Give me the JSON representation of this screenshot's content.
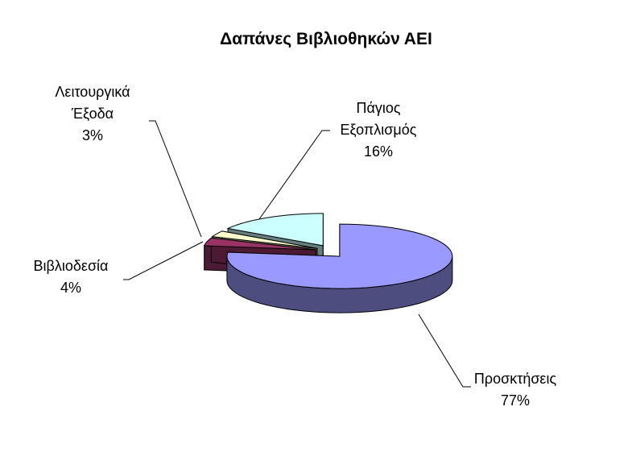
{
  "chart_data": {
    "type": "pie3d",
    "title": "Δαπάνες Βιβλιοθηκών ΑΕΙ",
    "categories": [
      "Προσκτήσεις",
      "Βιβλιοδεσία",
      "Λειτουργικά Έξοδα",
      "Πάγιος Εξοπλισμός"
    ],
    "values": [
      77,
      4,
      3,
      16
    ],
    "value_labels": [
      "77%",
      "4%",
      "3%",
      "16%"
    ],
    "colors": [
      "#9999ff",
      "#993366",
      "#ffffcc",
      "#ccffff"
    ]
  }
}
